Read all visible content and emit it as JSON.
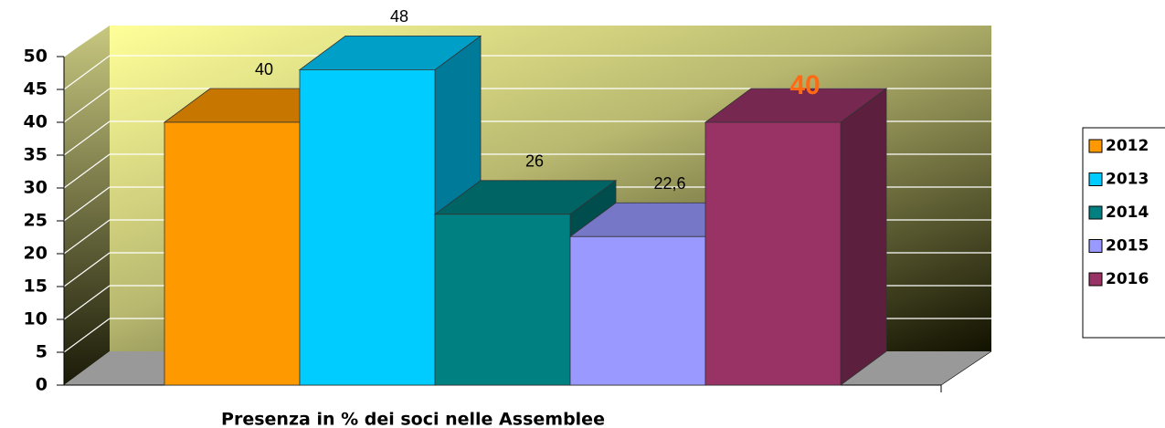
{
  "chart_data": {
    "type": "bar3d",
    "categories": [
      "Presenza in % dei soci nelle Assemblee"
    ],
    "series": [
      {
        "name": "2012",
        "color": "#ff9900",
        "values": [
          40
        ]
      },
      {
        "name": "2013",
        "color": "#00ccff",
        "values": [
          48
        ]
      },
      {
        "name": "2014",
        "color": "#008080",
        "values": [
          26
        ]
      },
      {
        "name": "2015",
        "color": "#9999ff",
        "values": [
          22.6
        ],
        "value_labels": [
          "22,6"
        ]
      },
      {
        "name": "2016",
        "color": "#993366",
        "values": [
          40
        ]
      }
    ],
    "ylim": [
      0,
      50
    ],
    "yticks": [
      0,
      5,
      10,
      15,
      20,
      25,
      30,
      35,
      40,
      45,
      50
    ],
    "grid": true,
    "legend": "right"
  }
}
